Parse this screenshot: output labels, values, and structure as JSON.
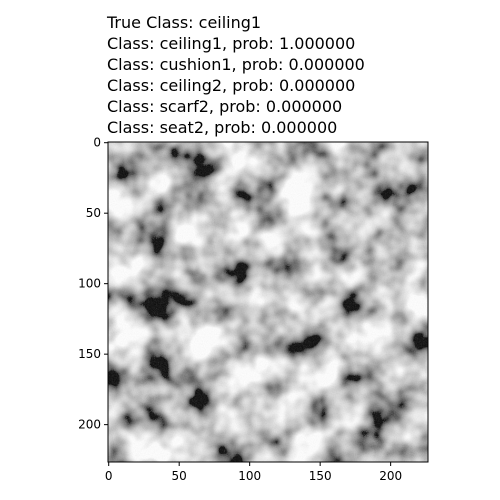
{
  "title_lines": [
    "True Class: ceiling1",
    "Class: ceiling1, prob: 1.000000",
    "Class: cushion1, prob: 0.000000",
    "Class: ceiling2, prob: 0.000000",
    "Class: scarf2, prob: 0.000000",
    "Class: seat2, prob: 0.000000"
  ],
  "chart_data": {
    "type": "heatmap",
    "content": "grayscale texture image (ceiling1)",
    "colormap": "gray",
    "image_size": [
      227,
      227
    ],
    "xlim": [
      -0.5,
      226.5
    ],
    "ylim": [
      226.5,
      -0.5
    ],
    "xticks": [
      0,
      50,
      100,
      150,
      200
    ],
    "yticks": [
      0,
      50,
      100,
      150,
      200
    ],
    "xlabel": "",
    "ylabel": "",
    "grid": false,
    "legend": false
  },
  "colors": {
    "axis": "#000000",
    "background": "#ffffff"
  }
}
